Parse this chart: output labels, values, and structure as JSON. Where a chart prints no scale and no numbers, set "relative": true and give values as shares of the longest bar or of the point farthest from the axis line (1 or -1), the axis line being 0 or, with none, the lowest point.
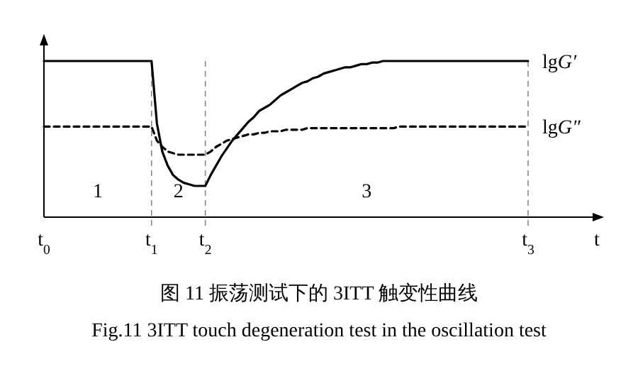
{
  "chart_data": {
    "type": "line",
    "relative": true,
    "title": "图 11  振荡测试下的 3ITT 触变性曲线",
    "subtitle": "Fig.11 3ITT touch degeneration test in the oscillation test",
    "xlabel": "t",
    "tick_labels": "x",
    "legend": false,
    "marker": "none",
    "categories": [
      "t$_{0}$",
      null,
      null,
      null,
      null,
      null,
      null,
      null,
      null,
      null,
      null,
      null,
      null,
      null,
      null,
      null,
      null,
      null,
      null,
      null,
      "t$_{1}$",
      null,
      null,
      null,
      null,
      null,
      null,
      null,
      null,
      null,
      "t$_{2}$",
      null,
      null,
      null,
      null,
      null,
      null,
      null,
      null,
      null,
      null,
      null,
      null,
      null,
      null,
      null,
      null,
      null,
      null,
      null,
      null,
      null,
      null,
      null,
      null,
      null,
      null,
      null,
      null,
      null,
      null,
      null,
      null,
      null,
      null,
      null,
      null,
      null,
      null,
      null,
      null,
      null,
      null,
      null,
      null,
      null,
      null,
      null,
      null,
      null,
      null,
      null,
      null,
      null,
      null,
      null,
      null,
      null,
      null,
      null,
      "t$_{3}$",
      null,
      null,
      null,
      null,
      null,
      null,
      null,
      null,
      null,
      null,
      null,
      null
    ],
    "series": [
      {
        "name": "lgG′",
        "color": "#000000",
        "line_style": "solid",
        "values": [
          1,
          1,
          1,
          1,
          1,
          1,
          1,
          1,
          1,
          1,
          1,
          1,
          1,
          1,
          1,
          1,
          1,
          1,
          1,
          1,
          1,
          0.6,
          0.42,
          0.33,
          0.27,
          0.24,
          0.22,
          0.21,
          0.2,
          0.2,
          0.2,
          0.27,
          0.33,
          0.39,
          0.44,
          0.49,
          0.53,
          0.57,
          0.61,
          0.64,
          0.68,
          0.7,
          0.72,
          0.75,
          0.78,
          0.8,
          0.82,
          0.84,
          0.86,
          0.87,
          0.89,
          0.9,
          0.92,
          0.93,
          0.94,
          0.95,
          0.96,
          0.96,
          0.97,
          0.98,
          0.98,
          0.99,
          0.99,
          1,
          1,
          1,
          1,
          1,
          1,
          1,
          1,
          1,
          1,
          1,
          1,
          1,
          1,
          1,
          1,
          1,
          1,
          1,
          1,
          1,
          1,
          1,
          1,
          1,
          1,
          1,
          1,
          null,
          null,
          null,
          null,
          null,
          null,
          null,
          null,
          null,
          null,
          null,
          null
        ]
      },
      {
        "name": "lgG″",
        "color": "#000000",
        "line_style": "dashed",
        "values": [
          0.58,
          0.58,
          0.58,
          0.58,
          0.58,
          0.58,
          0.58,
          0.58,
          0.58,
          0.58,
          0.58,
          0.58,
          0.58,
          0.58,
          0.58,
          0.58,
          0.58,
          0.58,
          0.58,
          0.58,
          0.58,
          0.49,
          0.45,
          0.42,
          0.41,
          0.4,
          0.4,
          0.4,
          0.4,
          0.4,
          0.4,
          0.42,
          0.45,
          0.47,
          0.49,
          0.5,
          0.51,
          0.52,
          0.53,
          0.53,
          0.54,
          0.54,
          0.55,
          0.55,
          0.55,
          0.56,
          0.56,
          0.56,
          0.56,
          0.57,
          0.57,
          0.57,
          0.57,
          0.57,
          0.57,
          0.57,
          0.57,
          0.57,
          0.57,
          0.57,
          0.57,
          0.57,
          0.57,
          0.57,
          0.57,
          0.57,
          0.58,
          0.58,
          0.58,
          0.58,
          0.58,
          0.58,
          0.58,
          0.58,
          0.58,
          0.58,
          0.58,
          0.58,
          0.58,
          0.58,
          0.58,
          0.58,
          0.58,
          0.58,
          0.58,
          0.58,
          0.58,
          0.58,
          0.58,
          0.58,
          0.58,
          null,
          null,
          null,
          null,
          null,
          null,
          null,
          null,
          null,
          null,
          null,
          null
        ]
      }
    ],
    "ref_lines": [
      {
        "axis": "x",
        "value": "t$_{1}$",
        "color": "#888888",
        "line_style": "dashed"
      },
      {
        "axis": "x",
        "value": "t$_{2}$",
        "color": "#888888",
        "line_style": "dashed"
      },
      {
        "axis": "x",
        "value": "t$_{3}$",
        "color": "#888888",
        "line_style": "dashed"
      }
    ],
    "annotations": [
      "1",
      "2",
      "3"
    ]
  }
}
